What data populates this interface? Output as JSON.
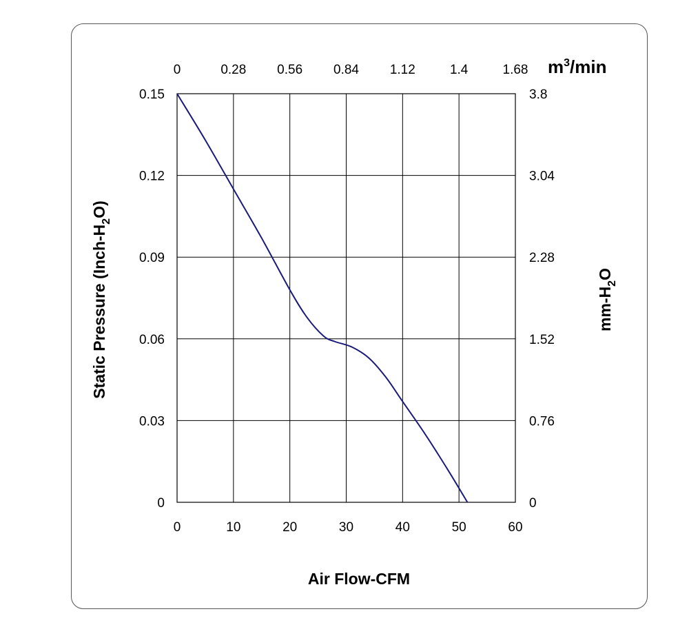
{
  "chart_data": {
    "type": "line",
    "xlabel": "Air Flow-CFM",
    "ylabel_left": {
      "text": "Static Pressure (Inch-H",
      "sub": "2",
      "tail": "O)"
    },
    "ylabel_right": {
      "text": "mm-H",
      "sub": "2",
      "tail": "O"
    },
    "x2label": {
      "text": "m",
      "sup": "3",
      "tail": "/min"
    },
    "xlim": [
      0,
      60
    ],
    "ylim": [
      0,
      0.15
    ],
    "x_ticks": [
      "0",
      "10",
      "20",
      "30",
      "40",
      "50",
      "60"
    ],
    "y_ticks_left": [
      "0",
      "0.03",
      "0.06",
      "0.09",
      "0.12",
      "0.15"
    ],
    "y_ticks_right": [
      "0",
      "0.76",
      "1.52",
      "2.28",
      "3.04",
      "3.8"
    ],
    "x2_ticks": [
      "0",
      "0.28",
      "0.56",
      "0.84",
      "1.12",
      "1.4",
      "1.68"
    ],
    "grid": true,
    "line_color": "#1a1a7a",
    "series": [
      {
        "x": [
          0,
          5,
          10,
          15,
          20,
          23,
          26,
          28,
          31,
          34,
          37,
          40,
          44,
          48,
          51.5
        ],
        "y": [
          0.15,
          0.133,
          0.115,
          0.097,
          0.078,
          0.068,
          0.061,
          0.059,
          0.057,
          0.053,
          0.046,
          0.037,
          0.025,
          0.012,
          0
        ]
      }
    ]
  }
}
